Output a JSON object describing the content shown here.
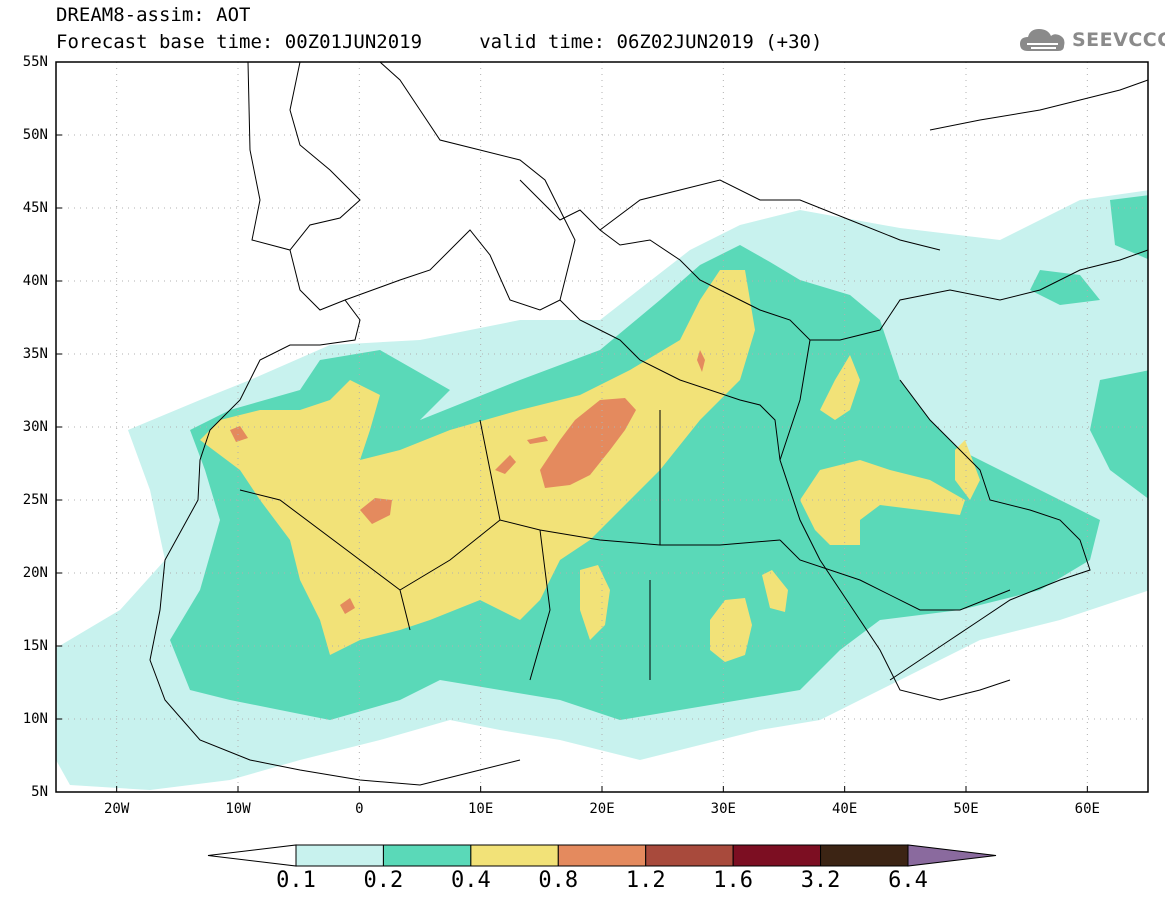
{
  "title": {
    "line1": "DREAM8-assim: AOT",
    "line2": "Forecast base time: 00Z01JUN2019     valid time: 06Z02JUN2019 (+30)"
  },
  "logo": {
    "text": "SEEVCCC",
    "icon": "cloud-icon"
  },
  "map": {
    "lat_axis": {
      "labels": [
        "55N",
        "50N",
        "45N",
        "40N",
        "35N",
        "30N",
        "25N",
        "20N",
        "15N",
        "10N",
        "5N"
      ],
      "values": [
        55,
        50,
        45,
        40,
        35,
        30,
        25,
        20,
        15,
        10,
        5
      ]
    },
    "lon_axis": {
      "labels": [
        "20W",
        "10W",
        "0",
        "10E",
        "20E",
        "30E",
        "40E",
        "50E",
        "60E"
      ],
      "values": [
        -20,
        -10,
        0,
        10,
        20,
        30,
        40,
        50,
        60
      ]
    },
    "extent": {
      "lon_min": -25,
      "lon_max": 65,
      "lat_min": 5,
      "lat_max": 55
    },
    "grid": true
  },
  "colorbar": {
    "labels": [
      "0.1",
      "0.2",
      "0.4",
      "0.8",
      "1.2",
      "1.6",
      "3.2",
      "6.4"
    ],
    "colors": [
      "#c8f2ee",
      "#5ad9b8",
      "#f2e278",
      "#e48a5e",
      "#a84a3c",
      "#7c0e22",
      "#3c2414",
      "#8a6a9e"
    ],
    "under_color": "#ffffff"
  },
  "field_colors": {
    "low": "#c8f2ee",
    "mid": "#5ad9b8",
    "high": "#f2e278",
    "peak": "#e48a5e"
  }
}
